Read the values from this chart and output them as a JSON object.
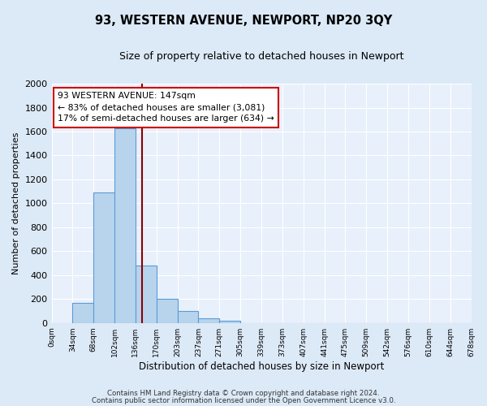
{
  "title": "93, WESTERN AVENUE, NEWPORT, NP20 3QY",
  "subtitle": "Size of property relative to detached houses in Newport",
  "xlabel": "Distribution of detached houses by size in Newport",
  "ylabel": "Number of detached properties",
  "bin_labels": [
    "0sqm",
    "34sqm",
    "68sqm",
    "102sqm",
    "136sqm",
    "170sqm",
    "203sqm",
    "237sqm",
    "271sqm",
    "305sqm",
    "339sqm",
    "373sqm",
    "407sqm",
    "441sqm",
    "475sqm",
    "509sqm",
    "542sqm",
    "576sqm",
    "610sqm",
    "644sqm",
    "678sqm"
  ],
  "bar_values": [
    0,
    170,
    1090,
    1630,
    480,
    200,
    100,
    40,
    20,
    0,
    0,
    0,
    0,
    0,
    0,
    0,
    0,
    0,
    0,
    0
  ],
  "bar_color": "#b8d4ed",
  "bar_edge_color": "#5b9bd5",
  "vline_color": "#8b0000",
  "annotation_line1": "93 WESTERN AVENUE: 147sqm",
  "annotation_line2": "← 83% of detached houses are smaller (3,081)",
  "annotation_line3": "17% of semi-detached houses are larger (634) →",
  "annotation_box_facecolor": "#ffffff",
  "annotation_box_edgecolor": "#cc0000",
  "ylim": [
    0,
    2000
  ],
  "yticks": [
    0,
    200,
    400,
    600,
    800,
    1000,
    1200,
    1400,
    1600,
    1800,
    2000
  ],
  "footer1": "Contains HM Land Registry data © Crown copyright and database right 2024.",
  "footer2": "Contains public sector information licensed under the Open Government Licence v3.0.",
  "bg_color": "#dce9f7",
  "plot_bg_color": "#e8f0fb"
}
